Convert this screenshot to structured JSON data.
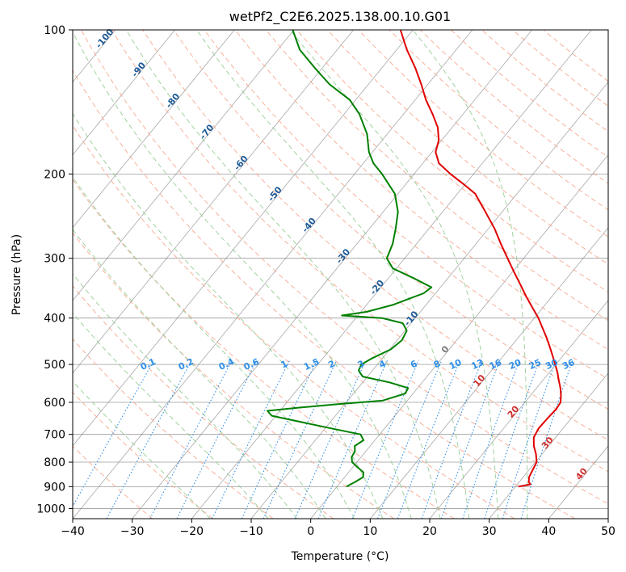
{
  "chart_data": {
    "type": "line",
    "title": "wetPf2_C2E6.2025.138.00.10.G01",
    "xlabel": "Temperature (°C)",
    "ylabel": "Pressure (hPa)",
    "xlim": [
      -40,
      50
    ],
    "ylim": [
      1050,
      100
    ],
    "y_scale": "log",
    "skew": true,
    "grid": true,
    "x_ticks": [
      -40,
      -30,
      -20,
      -10,
      0,
      10,
      20,
      30,
      40,
      50
    ],
    "y_ticks": [
      100,
      200,
      300,
      400,
      500,
      600,
      700,
      800,
      900,
      1000
    ],
    "colors": {
      "temperature": "#e00000",
      "dewpoint": "#008000",
      "dry_adiabat": "#f7a88f",
      "moist_adiabat": "#8fc98f",
      "mixing_ratio": "#2f8fe8",
      "isotherm": "#7a7a7a",
      "isobar": "#7a7a7a"
    },
    "series": [
      {
        "key": "temperature",
        "points": [
          [
            900,
            30.5
          ],
          [
            890,
            32.2
          ],
          [
            880,
            31.6
          ],
          [
            860,
            31.0
          ],
          [
            830,
            30.6
          ],
          [
            800,
            30.2
          ],
          [
            770,
            29.0
          ],
          [
            740,
            27.5
          ],
          [
            710,
            26.3
          ],
          [
            680,
            25.9
          ],
          [
            650,
            26.0
          ],
          [
            620,
            26.2
          ],
          [
            600,
            26.0
          ],
          [
            580,
            25.1
          ],
          [
            560,
            24.0
          ],
          [
            540,
            22.7
          ],
          [
            520,
            21.4
          ],
          [
            500,
            19.9
          ],
          [
            480,
            18.3
          ],
          [
            460,
            16.6
          ],
          [
            440,
            14.8
          ],
          [
            420,
            12.8
          ],
          [
            400,
            10.7
          ],
          [
            380,
            8.2
          ],
          [
            360,
            5.6
          ],
          [
            340,
            3.0
          ],
          [
            320,
            0.2
          ],
          [
            300,
            -2.7
          ],
          [
            280,
            -5.8
          ],
          [
            260,
            -9.0
          ],
          [
            240,
            -12.8
          ],
          [
            220,
            -17.0
          ],
          [
            210,
            -20.3
          ],
          [
            200,
            -23.9
          ],
          [
            190,
            -27.3
          ],
          [
            180,
            -29.4
          ],
          [
            170,
            -30.5
          ],
          [
            160,
            -32.4
          ],
          [
            150,
            -35.1
          ],
          [
            140,
            -38.2
          ],
          [
            130,
            -41.1
          ],
          [
            120,
            -44.4
          ],
          [
            110,
            -48.3
          ],
          [
            100,
            -52.1
          ]
        ]
      },
      {
        "key": "dewpoint",
        "points": [
          [
            900,
            1.6
          ],
          [
            880,
            2.4
          ],
          [
            860,
            3.1
          ],
          [
            840,
            2.5
          ],
          [
            820,
            0.8
          ],
          [
            800,
            -0.8
          ],
          [
            780,
            -1.6
          ],
          [
            760,
            -1.8
          ],
          [
            740,
            -2.6
          ],
          [
            720,
            -1.9
          ],
          [
            700,
            -3.2
          ],
          [
            680,
            -9.0
          ],
          [
            660,
            -14.8
          ],
          [
            640,
            -20.7
          ],
          [
            625,
            -22.1
          ],
          [
            615,
            -17.0
          ],
          [
            605,
            -11.0
          ],
          [
            595,
            -4.2
          ],
          [
            575,
            -1.3
          ],
          [
            560,
            -1.6
          ],
          [
            545,
            -5.5
          ],
          [
            530,
            -10.8
          ],
          [
            515,
            -12.3
          ],
          [
            500,
            -12.7
          ],
          [
            485,
            -11.7
          ],
          [
            465,
            -9.8
          ],
          [
            445,
            -9.2
          ],
          [
            425,
            -9.7
          ],
          [
            410,
            -11.4
          ],
          [
            400,
            -15.6
          ],
          [
            395,
            -22.7
          ],
          [
            388,
            -19.0
          ],
          [
            375,
            -15.5
          ],
          [
            355,
            -12.0
          ],
          [
            345,
            -11.5
          ],
          [
            330,
            -15.8
          ],
          [
            315,
            -20.6
          ],
          [
            300,
            -23.0
          ],
          [
            280,
            -24.0
          ],
          [
            260,
            -25.6
          ],
          [
            240,
            -27.5
          ],
          [
            220,
            -30.5
          ],
          [
            200,
            -35.4
          ],
          [
            190,
            -38.3
          ],
          [
            180,
            -40.6
          ],
          [
            165,
            -43.4
          ],
          [
            150,
            -47.4
          ],
          [
            140,
            -51.0
          ],
          [
            130,
            -56.5
          ],
          [
            120,
            -61.3
          ],
          [
            110,
            -66.3
          ],
          [
            100,
            -70.2
          ]
        ]
      }
    ],
    "isotherm_labels": [
      "-100",
      "-90",
      "-80",
      "-70",
      "-60",
      "-50",
      "-40",
      "-30",
      "-20",
      "-10",
      "0",
      "10",
      "20",
      "30",
      "40"
    ],
    "mixing_ratio_labels": [
      "0.1",
      "0.2",
      "0.4",
      "0.6",
      "1",
      "1.5",
      "2",
      "3",
      "4",
      "6",
      "8",
      "10",
      "13",
      "16",
      "20",
      "25",
      "30",
      "36"
    ]
  }
}
